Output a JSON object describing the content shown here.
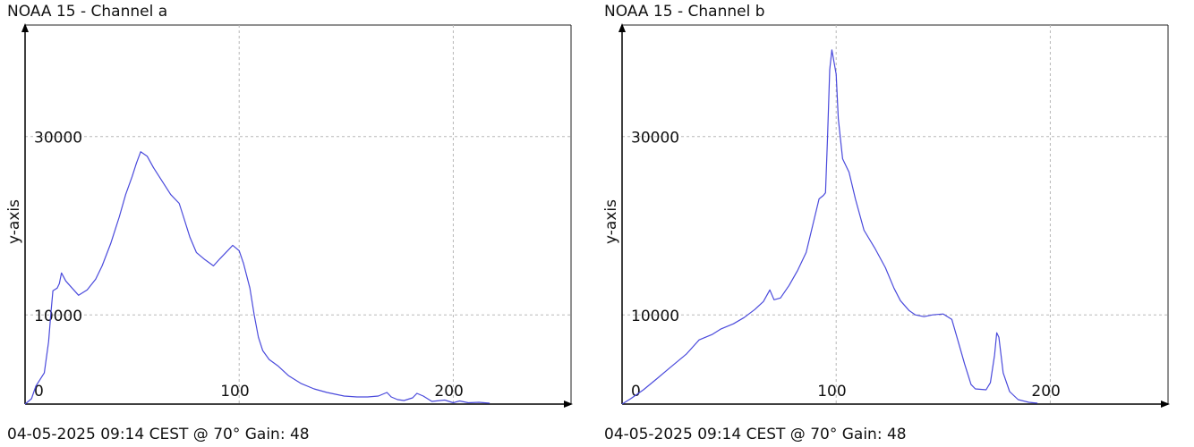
{
  "chart_data": [
    {
      "type": "line",
      "title": "NOAA 15 - Channel a",
      "footer": "04-05-2025 09:14 CEST @ 70° Gain: 48",
      "xlabel": "",
      "ylabel": "y-axis",
      "xlim": [
        0,
        255
      ],
      "ylim": [
        0,
        42500
      ],
      "x_ticks": [
        0,
        100,
        200
      ],
      "y_ticks": [
        10000,
        30000
      ],
      "grid": true,
      "line_color": "#4a4adc",
      "series": [
        {
          "points": [
            [
              0,
              0
            ],
            [
              3,
              600
            ],
            [
              5,
              2000
            ],
            [
              9,
              3500
            ],
            [
              11,
              7000
            ],
            [
              12,
              10000
            ],
            [
              13,
              12700
            ],
            [
              15,
              13000
            ],
            [
              16,
              13500
            ],
            [
              17,
              14700
            ],
            [
              19,
              13800
            ],
            [
              22,
              13000
            ],
            [
              25,
              12200
            ],
            [
              29,
              12800
            ],
            [
              33,
              14000
            ],
            [
              36,
              15500
            ],
            [
              40,
              18000
            ],
            [
              44,
              21000
            ],
            [
              47,
              23500
            ],
            [
              50,
              25500
            ],
            [
              52,
              27000
            ],
            [
              54,
              28300
            ],
            [
              57,
              27800
            ],
            [
              60,
              26500
            ],
            [
              64,
              25000
            ],
            [
              68,
              23500
            ],
            [
              72,
              22500
            ],
            [
              74,
              21000
            ],
            [
              77,
              18700
            ],
            [
              80,
              17000
            ],
            [
              84,
              16200
            ],
            [
              88,
              15500
            ],
            [
              91,
              16300
            ],
            [
              95,
              17300
            ],
            [
              97,
              17800
            ],
            [
              100,
              17200
            ],
            [
              102,
              15800
            ],
            [
              105,
              13000
            ],
            [
              107,
              10000
            ],
            [
              109,
              7500
            ],
            [
              111,
              6000
            ],
            [
              114,
              5000
            ],
            [
              118,
              4300
            ],
            [
              123,
              3200
            ],
            [
              129,
              2300
            ],
            [
              135,
              1700
            ],
            [
              141,
              1300
            ],
            [
              145,
              1100
            ],
            [
              149,
              900
            ],
            [
              155,
              800
            ],
            [
              160,
              800
            ],
            [
              165,
              900
            ],
            [
              169,
              1300
            ],
            [
              171,
              800
            ],
            [
              174,
              500
            ],
            [
              177,
              400
            ],
            [
              181,
              700
            ],
            [
              183,
              1200
            ],
            [
              186,
              900
            ],
            [
              190,
              300
            ],
            [
              196,
              450
            ],
            [
              200,
              150
            ],
            [
              203,
              350
            ],
            [
              207,
              150
            ],
            [
              212,
              200
            ],
            [
              217,
              100
            ]
          ]
        }
      ]
    },
    {
      "type": "line",
      "title": "NOAA 15 - Channel b",
      "footer": "04-05-2025 09:14 CEST @ 70° Gain: 48",
      "xlabel": "",
      "ylabel": "y-axis",
      "xlim": [
        0,
        255
      ],
      "ylim": [
        0,
        42500
      ],
      "x_ticks": [
        0,
        100,
        200
      ],
      "y_ticks": [
        10000,
        30000
      ],
      "grid": true,
      "line_color": "#4a4adc",
      "series": [
        {
          "points": [
            [
              0,
              0
            ],
            [
              4,
              600
            ],
            [
              10,
              1600
            ],
            [
              16,
              2800
            ],
            [
              22,
              4000
            ],
            [
              30,
              5600
            ],
            [
              36,
              7200
            ],
            [
              42,
              7800
            ],
            [
              46,
              8400
            ],
            [
              52,
              9000
            ],
            [
              57,
              9700
            ],
            [
              62,
              10600
            ],
            [
              66,
              11500
            ],
            [
              69,
              12800
            ],
            [
              71,
              11700
            ],
            [
              74,
              11900
            ],
            [
              78,
              13300
            ],
            [
              82,
              15000
            ],
            [
              86,
              17000
            ],
            [
              89,
              20000
            ],
            [
              92,
              23000
            ],
            [
              94,
              23400
            ],
            [
              95,
              23700
            ],
            [
              96,
              30000
            ],
            [
              97,
              37500
            ],
            [
              98,
              39700
            ],
            [
              100,
              37000
            ],
            [
              101,
              32000
            ],
            [
              103,
              27500
            ],
            [
              106,
              26000
            ],
            [
              109,
              23000
            ],
            [
              113,
              19500
            ],
            [
              118,
              17500
            ],
            [
              123,
              15300
            ],
            [
              127,
              13000
            ],
            [
              130,
              11600
            ],
            [
              134,
              10500
            ],
            [
              137,
              10000
            ],
            [
              141,
              9800
            ],
            [
              145,
              10000
            ],
            [
              150,
              10100
            ],
            [
              154,
              9500
            ],
            [
              157,
              7000
            ],
            [
              160,
              4500
            ],
            [
              163,
              2200
            ],
            [
              165,
              1700
            ],
            [
              170,
              1600
            ],
            [
              172,
              2400
            ],
            [
              174,
              5500
            ],
            [
              175,
              8000
            ],
            [
              176,
              7500
            ],
            [
              178,
              3500
            ],
            [
              181,
              1400
            ],
            [
              185,
              500
            ],
            [
              190,
              200
            ],
            [
              194,
              100
            ]
          ]
        }
      ]
    }
  ]
}
